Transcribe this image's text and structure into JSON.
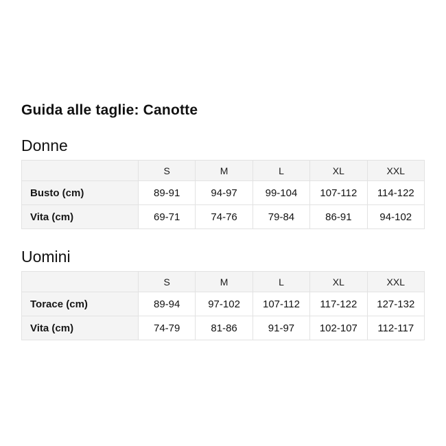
{
  "page": {
    "title": "Guida alle taglie: Canotte"
  },
  "colors": {
    "background": "#ffffff",
    "text": "#111111",
    "table_header_fill": "#f4f4f4",
    "table_border": "#e2e2e2"
  },
  "sections": [
    {
      "heading": "Donne",
      "table": {
        "columns": [
          "",
          "S",
          "M",
          "L",
          "XL",
          "XXL"
        ],
        "rows": [
          {
            "label": "Busto (cm)",
            "values": [
              "89-91",
              "94-97",
              "99-104",
              "107-112",
              "114-122"
            ]
          },
          {
            "label": "Vita (cm)",
            "values": [
              "69-71",
              "74-76",
              "79-84",
              "86-91",
              "94-102"
            ]
          }
        ]
      }
    },
    {
      "heading": "Uomini",
      "table": {
        "columns": [
          "",
          "S",
          "M",
          "L",
          "XL",
          "XXL"
        ],
        "rows": [
          {
            "label": "Torace (cm)",
            "values": [
              "89-94",
              "97-102",
              "107-112",
              "117-122",
              "127-132"
            ]
          },
          {
            "label": "Vita (cm)",
            "values": [
              "74-79",
              "81-86",
              "91-97",
              "102-107",
              "112-117"
            ]
          }
        ]
      }
    }
  ]
}
